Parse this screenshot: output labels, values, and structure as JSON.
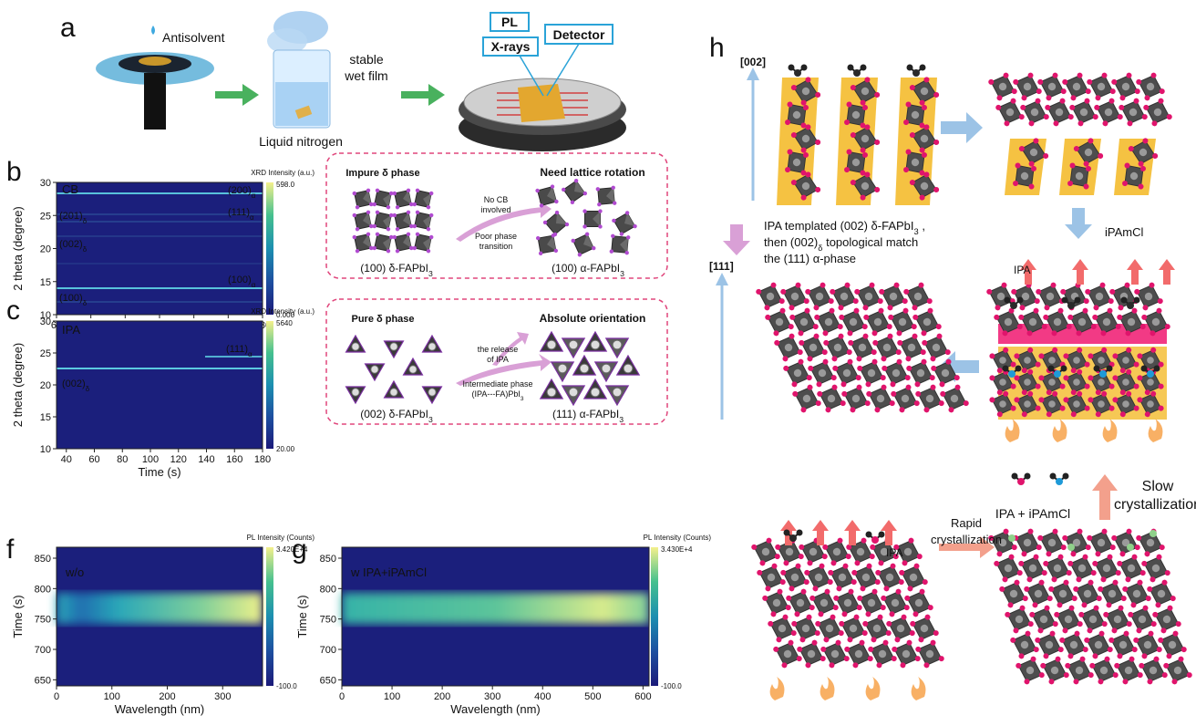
{
  "panel_a": {
    "label": "a",
    "antisolvent": "Antisolvent",
    "liquid_nitrogen": "Liquid nitrogen",
    "wet_film": [
      "stable",
      "wet film"
    ],
    "pl": "PL",
    "xrays": "X-rays",
    "detector": "Detector"
  },
  "panel_b": {
    "label": "b",
    "colorbar_title": "XRD Intensity (a.u.)",
    "colorbar_max": "598.0",
    "colorbar_min": "0.000",
    "y_label": "2 theta (degree)",
    "x_label": "Time (s)",
    "xlim": [
      60,
      180
    ],
    "xticks": [
      60,
      80,
      100,
      120,
      140,
      160,
      180
    ],
    "ylim": [
      10,
      30
    ],
    "yticks": [
      10,
      15,
      20,
      25,
      30
    ],
    "solvent": "CB",
    "peaks": [
      [
        "(200)",
        {
          "sub": "α"
        }
      ],
      [
        "(201)",
        {
          "sub": "δ"
        }
      ],
      [
        "(111)",
        {
          "sub": "α"
        }
      ],
      [
        "(002)",
        {
          "sub": "δ"
        }
      ],
      [
        "(100)",
        {
          "sub": "α"
        }
      ],
      [
        "(100)",
        {
          "sub": "δ"
        }
      ]
    ]
  },
  "panel_c": {
    "label": "c",
    "colorbar_title": "XRD Intensity (a.u.)",
    "colorbar_max": "5640",
    "colorbar_min": "20.00",
    "y_label": "2 theta (degree)",
    "x_label": "Time (s)",
    "xlim": [
      33,
      180
    ],
    "xticks": [
      40,
      60,
      80,
      100,
      120,
      140,
      160,
      180
    ],
    "ylim": [
      10,
      30
    ],
    "yticks": [
      10,
      15,
      20,
      25,
      30
    ],
    "solvent": "IPA",
    "peaks": [
      [
        "(111)",
        {
          "sub": "α"
        }
      ],
      [
        "(002)",
        {
          "sub": "δ"
        }
      ]
    ]
  },
  "panel_d": {
    "label": "d",
    "left_title": "Impure δ phase",
    "right_title": "Need lattice rotation",
    "upper_note": [
      "No CB",
      "involved"
    ],
    "lower_note": [
      "Poor phase",
      "transition"
    ],
    "left_caption": [
      "(100) δ-FAPbI",
      {
        "sub": "3"
      }
    ],
    "right_caption": [
      "(100) α-FAPbI",
      {
        "sub": "3"
      }
    ]
  },
  "panel_e": {
    "label": "e",
    "left_title": "Pure δ phase",
    "right_title": "Absolute orientation",
    "upper_note": [
      "the release",
      "of IPA"
    ],
    "lower_note": [
      "Intermediate phase",
      [
        "(IPA---FA)PbI",
        {
          "sub": "3"
        }
      ]
    ],
    "left_caption": [
      "(002) δ-FAPbI",
      {
        "sub": "3"
      }
    ],
    "right_caption": [
      "(111) α-FAPbI",
      {
        "sub": "3"
      }
    ]
  },
  "panel_f": {
    "label": "f",
    "colorbar_title": "PL Intensity (Counts)",
    "colorbar_max": "3.420E+4",
    "colorbar_min": "-100.0",
    "y_label": "Time (s)",
    "x_label": "Wavelength (nm)",
    "xlim": [
      0,
      372
    ],
    "xticks": [
      0,
      100,
      200,
      300
    ],
    "ylim": [
      640,
      868
    ],
    "yticks": [
      650,
      700,
      750,
      800,
      850
    ],
    "sample": "w/o"
  },
  "panel_g": {
    "label": "g",
    "colorbar_title": "PL Intensity (Counts)",
    "colorbar_max": "3.430E+4",
    "colorbar_min": "-100.0",
    "y_label": "Time (s)",
    "x_label": "Wavelength (nm)",
    "xlim": [
      0,
      612
    ],
    "xticks": [
      0,
      100,
      200,
      300,
      400,
      500,
      600
    ],
    "ylim": [
      640,
      868
    ],
    "yticks": [
      650,
      700,
      750,
      800,
      850
    ],
    "sample": "w IPA+iPAmCl"
  },
  "panel_h": {
    "label": "h",
    "direction_top": "[002]",
    "direction_bottom": "[111]",
    "mechanism": [
      [
        "IPA templated (002) δ-FAPbI",
        {
          "sub": "3"
        },
        " ,"
      ],
      [
        "then (002)",
        {
          "sub": "δ"
        },
        " topological match"
      ],
      "the (111) α-phase"
    ],
    "additive": "iPAmCl",
    "release_label": "IPA",
    "legend": "IPA + iPAmCl",
    "slow": [
      "Slow",
      "crystallization"
    ],
    "bottom_release_label": "IPA",
    "rapid": [
      "Rapid",
      "crystallization"
    ]
  }
}
